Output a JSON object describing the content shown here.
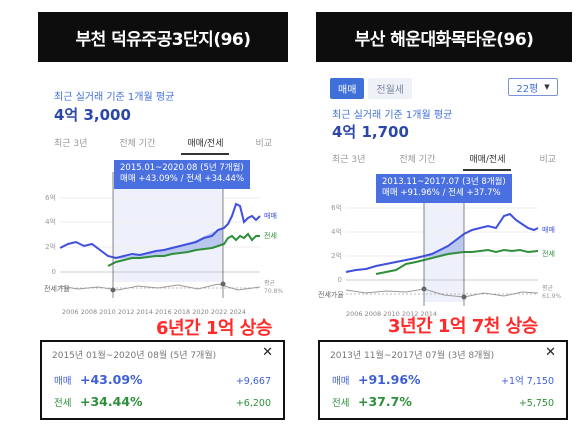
{
  "left": {
    "banner": "부천 덕유주공3단지(96)",
    "subtitle": "최근 실거래 기준 1개월 평균",
    "price": "4억 3,000",
    "tabs": [
      "최근 3년",
      "전체 기간",
      "매매/전세",
      "비교"
    ],
    "tooltip_line1": "2015.01~2020.08 (5년 7개월)",
    "tooltip_line2": "매매 +43.09%  /  전세 +34.44%",
    "y_ticks": [
      "6억",
      "4억",
      "2억",
      "0"
    ],
    "jeonse_rate_label": "전세가율",
    "avg_label": "평균",
    "avg_value": "70.8%",
    "series_labels": {
      "sale": "매매",
      "jeonse": "전세"
    },
    "x_axis": "2006 2008 2010 2012 2014 2016 2018 2020 2022 2024",
    "overlay": "6년간 1억 상승",
    "card": {
      "period": "2015년 01월~2020년 08월 (5년 7개월)",
      "close": "✕",
      "rows": [
        {
          "label": "매매",
          "pct": "+43.09%",
          "amount": "+9,667"
        },
        {
          "label": "전세",
          "pct": "+34.44%",
          "amount": "+6,200"
        }
      ]
    }
  },
  "right": {
    "banner": "부산 해운대화목타운(96)",
    "pill_active": "매매",
    "pill_inactive": "전월세",
    "pyeong": "22평",
    "pyeong_caret": "▼",
    "subtitle": "최근 실거래 기준 1개월 평균",
    "price": "4억 1,700",
    "tabs": [
      "최근 3년",
      "전체 기간",
      "매매/전세",
      "비교"
    ],
    "tooltip_line1": "2013.11~2017.07 (3년 8개월)",
    "tooltip_line2": "매매 +91.96%  /  전세 +37.7%",
    "y_ticks": [
      "6억",
      "4억",
      "2억",
      "0"
    ],
    "jeonse_rate_label": "전세가율",
    "avg_label": "평균",
    "avg_value": "61.9%",
    "series_labels": {
      "sale": "매매",
      "jeonse": "전세"
    },
    "x_axis": "2006 2008 2010 2012 2014",
    "overlay": "3년간 1억 7천 상승",
    "card": {
      "period": "2013년 11월~2017년 07월 (3년 8개월)",
      "close": "✕",
      "rows": [
        {
          "label": "매매",
          "pct": "+91.96%",
          "amount": "+1억 7,150"
        },
        {
          "label": "전세",
          "pct": "+37.7%",
          "amount": "+5,750"
        }
      ]
    }
  },
  "colors": {
    "sale": "#3f4fe0",
    "jeonse": "#2f8f3a",
    "accent": "#3f6fd8",
    "overlay": "#ff2a2a"
  }
}
